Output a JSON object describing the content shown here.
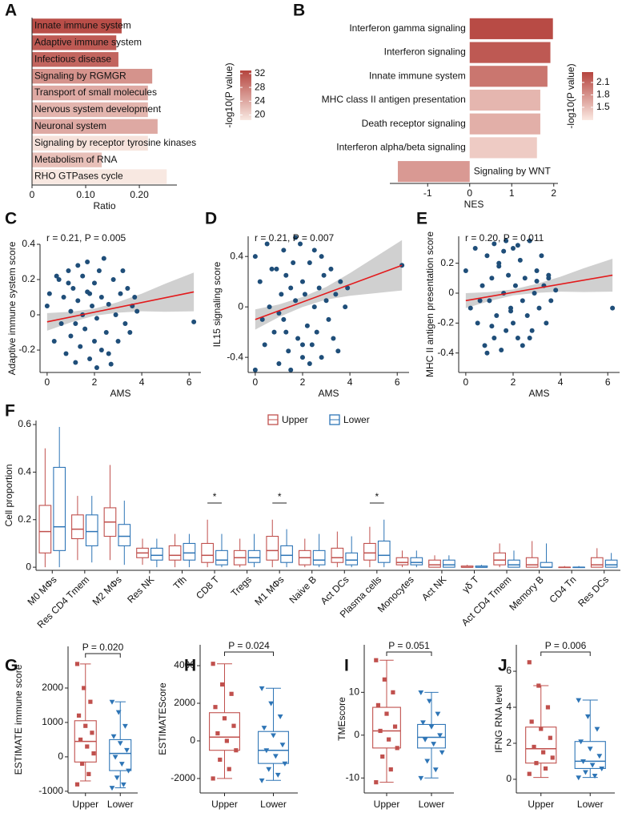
{
  "chart_data": [
    {
      "panel": "A",
      "type": "hbar",
      "label_position": "inside",
      "categories": [
        "Innate immune system",
        "Adaptive immune system",
        "Infectious disease",
        "Signaling by RGMGR",
        "Transport of small molecules",
        "Nervous system development",
        "Neuronal system",
        "Signaling by receptor tyrosine kinases",
        "Metabolism of RNA",
        "RHO GTPases cycle"
      ],
      "values": [
        0.167,
        0.157,
        0.161,
        0.224,
        0.216,
        0.216,
        0.234,
        0.216,
        0.13,
        0.251
      ],
      "color_values": [
        32,
        31,
        30,
        26,
        24,
        23,
        24,
        19,
        22,
        18.5
      ],
      "xlabel": "Ratio",
      "xlim": [
        0,
        0.27
      ],
      "xticks": [
        0,
        {
          "value": 0.1,
          "label": "0.10"
        },
        {
          "value": 0.2,
          "label": "0.20"
        }
      ],
      "colorbar": {
        "title": "-log10(P value)",
        "lim": [
          18.5,
          32.9
        ],
        "ticks": [
          20,
          24,
          28,
          32
        ],
        "colors": [
          "#f8e8e1",
          "#b5443e"
        ]
      }
    },
    {
      "panel": "B",
      "type": "hbar",
      "label_position": "outside",
      "categories": [
        "Interferon gamma signaling",
        "Interferon signaling",
        "Innate immune system",
        "MHC class II antigen presentation",
        "Death receptor signaling",
        "Interferon alpha/beta signaling",
        "Signaling by WNT"
      ],
      "values": [
        1.98,
        1.92,
        1.85,
        1.68,
        1.68,
        1.6,
        -1.71
      ],
      "color_values": [
        2.3,
        2.2,
        2.0,
        1.55,
        1.6,
        1.4,
        1.75
      ],
      "xlabel": "NES",
      "xlim": [
        -1.9,
        2.1
      ],
      "xticks": [
        -1,
        0,
        1,
        2
      ],
      "colorbar": {
        "title": "-log10(P value)",
        "lim": [
          1.19,
          2.35
        ],
        "ticks": [
          1.5,
          1.8,
          2.1
        ],
        "colors": [
          "#fbe9e2",
          "#b5443e"
        ]
      }
    },
    {
      "panel": "C",
      "type": "scatter",
      "annotation": "r = 0.21, P = 0.005",
      "xlabel": "AMS",
      "ylabel": "Adaptive immune system score",
      "color": "#1f4e79",
      "x": [
        0,
        0.1,
        0.3,
        0.5,
        0.6,
        0.7,
        0.8,
        0.9,
        1.0,
        1.0,
        1.1,
        1.2,
        1.3,
        1.3,
        1.4,
        1.5,
        1.5,
        1.6,
        1.7,
        1.8,
        1.8,
        1.9,
        2.0,
        2.0,
        2.1,
        2.2,
        2.3,
        2.3,
        2.4,
        2.5,
        2.6,
        2.7,
        2.8,
        2.9,
        3.0,
        3.1,
        3.2,
        3.3,
        3.4,
        3.5,
        3.6,
        3.7,
        3.8,
        1.2,
        0.9,
        1.7,
        2.6,
        2.1,
        6.2,
        0.4
      ],
      "y": [
        0.05,
        0.12,
        -0.15,
        0.2,
        -0.05,
        0.1,
        -0.22,
        0.25,
        0.02,
        -0.12,
        0.15,
        -0.27,
        0.08,
        0.28,
        -0.18,
        0.0,
        0.22,
        -0.08,
        0.3,
        -0.25,
        0.12,
        0.05,
        -0.15,
        0.18,
        -0.02,
        0.25,
        -0.2,
        0.1,
        0.32,
        -0.1,
        0.06,
        -0.28,
        0.2,
        0.0,
        -0.15,
        0.12,
        0.25,
        -0.05,
        0.15,
        -0.1,
        0.05,
        0.1,
        0.02,
        -0.05,
        0.18,
        0.13,
        -0.22,
        -0.3,
        -0.04,
        0.22
      ],
      "fit": {
        "x": [
          0,
          6.2
        ],
        "y": [
          -0.04,
          0.13
        ],
        "color": "#e31a1c"
      },
      "band": {
        "x": [
          0,
          1,
          2,
          3,
          4,
          5,
          6.2
        ],
        "lower": [
          -0.09,
          -0.043,
          -0.005,
          0.012,
          0.02,
          0.017,
          0.02
        ],
        "upper": [
          0.01,
          0.017,
          0.035,
          0.072,
          0.12,
          0.177,
          0.24
        ],
        "color": "#c8c8c8"
      },
      "xlim": [
        -0.3,
        6.5
      ],
      "xticks": [
        0,
        2,
        4,
        6
      ],
      "ylim": [
        -0.327,
        0.4
      ],
      "yticks": [
        -0.2,
        0,
        0.2,
        0.4
      ]
    },
    {
      "panel": "D",
      "type": "scatter",
      "annotation": "r = 0.21, P = 0.007",
      "xlabel": "AMS",
      "ylabel": "IL15 signaling score",
      "color": "#1f4e79",
      "x": [
        0,
        0,
        0.2,
        0.4,
        0.5,
        0.6,
        0.8,
        0.9,
        1.0,
        1.1,
        1.2,
        1.2,
        1.3,
        1.4,
        1.5,
        1.5,
        1.6,
        1.7,
        1.8,
        1.9,
        2.0,
        2.0,
        2.1,
        2.2,
        2.3,
        2.4,
        2.5,
        2.5,
        2.6,
        2.7,
        2.8,
        2.9,
        3.0,
        3.1,
        3.2,
        3.3,
        3.4,
        3.5,
        3.6,
        3.8,
        1.0,
        1.7,
        2.3,
        0.7,
        2.8,
        1.3,
        6.2,
        3.9,
        0.3,
        2.0
      ],
      "y": [
        0.4,
        -0.5,
        0.2,
        -0.3,
        0.5,
        0.0,
        -0.2,
        0.3,
        -0.45,
        0.1,
        0.45,
        -0.1,
        0.25,
        -0.35,
        0.15,
        -0.5,
        0.35,
        0.05,
        -0.25,
        0.5,
        -0.4,
        0.2,
        0.1,
        -0.15,
        0.35,
        -0.3,
        0.0,
        0.45,
        -0.2,
        0.15,
        -0.4,
        0.25,
        0.05,
        -0.1,
        0.3,
        -0.25,
        0.1,
        -0.35,
        0.2,
        0.0,
        -0.05,
        0.55,
        -0.45,
        0.3,
        0.4,
        -0.2,
        0.33,
        0.15,
        -0.1,
        -0.3
      ],
      "fit": {
        "x": [
          0,
          6.2
        ],
        "y": [
          -0.1,
          0.33
        ],
        "color": "#e31a1c"
      },
      "band": {
        "x": [
          0,
          1,
          2,
          3,
          4,
          5,
          6.2
        ],
        "lower": [
          -0.18,
          -0.081,
          -0.001,
          0.058,
          0.088,
          0.107,
          0.13
        ],
        "upper": [
          -0.02,
          0.019,
          0.079,
          0.158,
          0.268,
          0.387,
          0.53
        ],
        "color": "#c8c8c8"
      },
      "xlim": [
        -0.3,
        6.5
      ],
      "xticks": [
        0,
        2,
        4,
        6
      ],
      "ylim": [
        -0.52,
        0.56
      ],
      "yticks": [
        -0.4,
        0,
        0.4
      ]
    },
    {
      "panel": "E",
      "type": "scatter",
      "annotation": "r = 0.20, P = 0.011",
      "xlabel": "AMS",
      "ylabel": "MHC II antigen presentation score",
      "color": "#1f4e79",
      "x": [
        0,
        0.2,
        0.4,
        0.5,
        0.7,
        0.8,
        0.9,
        1.0,
        1.1,
        1.2,
        1.2,
        1.3,
        1.4,
        1.5,
        1.6,
        1.6,
        1.7,
        1.8,
        1.9,
        2.0,
        2.0,
        2.1,
        2.2,
        2.3,
        2.4,
        2.5,
        2.6,
        2.7,
        2.8,
        2.9,
        3.0,
        3.1,
        3.2,
        3.3,
        3.4,
        3.5,
        3.6,
        3.8,
        0.9,
        1.4,
        2.2,
        2.7,
        1.1,
        1.9,
        3.0,
        6.2,
        3.5,
        0.6,
        2.4,
        1.7
      ],
      "y": [
        0.15,
        -0.1,
        0.3,
        -0.2,
        0.05,
        -0.35,
        0.25,
        -0.05,
        0.1,
        -0.3,
        0.33,
        -0.15,
        0.2,
        -0.38,
        0.0,
        0.28,
        -0.25,
        0.12,
        -0.1,
        0.3,
        -0.2,
        0.05,
        -0.3,
        0.22,
        -0.05,
        0.1,
        -0.15,
        0.35,
        -0.25,
        0.0,
        0.15,
        -0.1,
        0.25,
        0.05,
        -0.2,
        0.1,
        -0.05,
        0.02,
        -0.4,
        0.18,
        0.32,
        -0.3,
        -0.22,
        -0.12,
        0.08,
        -0.1,
        0.12,
        -0.05,
        -0.35,
        0.35
      ],
      "fit": {
        "x": [
          0,
          6.2
        ],
        "y": [
          -0.05,
          0.12
        ],
        "color": "#e31a1c"
      },
      "band": {
        "x": [
          0,
          1,
          2,
          3,
          4,
          5,
          6.2
        ],
        "lower": [
          -0.1,
          -0.053,
          -0.015,
          0.002,
          0.01,
          0.007,
          0.01
        ],
        "upper": [
          0,
          0.007,
          0.025,
          0.062,
          0.11,
          0.167,
          0.23
        ],
        "color": "#c8c8c8"
      },
      "xlim": [
        -0.3,
        6.5
      ],
      "xticks": [
        0,
        2,
        4,
        6
      ],
      "ylim": [
        -0.53,
        0.38
      ],
      "yticks": [
        -0.4,
        -0.2,
        0,
        0.2
      ]
    },
    {
      "panel": "F",
      "type": "box",
      "ylabel": "Cell proportion",
      "categories": [
        "M0 MΦs",
        "Res CD4 Tmem",
        "M2 MΦs",
        "Res NK",
        "Tfh",
        "CD8 T",
        "Tregs",
        "M1 MΦs",
        "Naive B",
        "Act DCs",
        "Plasma cells",
        "Monocytes",
        "Act NK",
        "γδ T",
        "Act CD4 Tmem",
        "Memory B",
        "CD4 Tn",
        "Res DCs"
      ],
      "series": [
        {
          "name": "Upper",
          "color": "#c0504d",
          "values": [
            [
              0,
              0.06,
              0.15,
              0.26,
              0.5
            ],
            [
              0.03,
              0.12,
              0.16,
              0.22,
              0.3
            ],
            [
              0.03,
              0.13,
              0.19,
              0.25,
              0.43
            ],
            [
              0.01,
              0.04,
              0.06,
              0.08,
              0.12
            ],
            [
              0,
              0.03,
              0.05,
              0.09,
              0.14
            ],
            [
              0,
              0.02,
              0.05,
              0.1,
              0.2
            ],
            [
              0,
              0.01,
              0.04,
              0.07,
              0.12
            ],
            [
              0,
              0.03,
              0.07,
              0.13,
              0.2
            ],
            [
              0,
              0.01,
              0.04,
              0.07,
              0.12
            ],
            [
              0,
              0.02,
              0.04,
              0.08,
              0.15
            ],
            [
              0,
              0.03,
              0.06,
              0.1,
              0.17
            ],
            [
              0,
              0.01,
              0.02,
              0.04,
              0.07
            ],
            [
              0,
              0,
              0.01,
              0.03,
              0.05
            ],
            [
              0,
              0,
              0,
              0.005,
              0.01
            ],
            [
              0,
              0.01,
              0.03,
              0.06,
              0.1
            ],
            [
              0,
              0,
              0.01,
              0.04,
              0.11
            ],
            [
              0,
              0,
              0,
              0,
              0.005
            ],
            [
              0,
              0,
              0.01,
              0.04,
              0.08
            ]
          ]
        },
        {
          "name": "Lower",
          "color": "#2e75b6",
          "values": [
            [
              0,
              0.07,
              0.17,
              0.42,
              0.59
            ],
            [
              0.02,
              0.09,
              0.15,
              0.22,
              0.3
            ],
            [
              0.01,
              0.09,
              0.13,
              0.18,
              0.28
            ],
            [
              0,
              0.03,
              0.05,
              0.08,
              0.12
            ],
            [
              0,
              0.03,
              0.06,
              0.1,
              0.14
            ],
            [
              0,
              0.01,
              0.03,
              0.07,
              0.14
            ],
            [
              0,
              0.02,
              0.04,
              0.07,
              0.14
            ],
            [
              0,
              0.02,
              0.05,
              0.09,
              0.16
            ],
            [
              0,
              0.01,
              0.03,
              0.07,
              0.14
            ],
            [
              0,
              0.01,
              0.03,
              0.06,
              0.13
            ],
            [
              0,
              0.02,
              0.05,
              0.11,
              0.2
            ],
            [
              0,
              0.01,
              0.02,
              0.04,
              0.07
            ],
            [
              0,
              0,
              0.01,
              0.03,
              0.05
            ],
            [
              0,
              0,
              0,
              0.005,
              0.01
            ],
            [
              0,
              0,
              0.01,
              0.03,
              0.07
            ],
            [
              0,
              0,
              0,
              0.02,
              0.1
            ],
            [
              0,
              0,
              0,
              0,
              0.005
            ],
            [
              0,
              0,
              0.01,
              0.03,
              0.06
            ]
          ]
        }
      ],
      "annotations": [
        {
          "text": "*",
          "category": "CD8 T",
          "y": 0.27
        },
        {
          "text": "*",
          "category": "M1 MΦs",
          "y": 0.27
        },
        {
          "text": "*",
          "category": "Plasma cells",
          "y": 0.27
        }
      ],
      "ylim": [
        -0.013,
        0.617
      ],
      "yticks": [
        0,
        0.2,
        0.4,
        0.6
      ]
    },
    {
      "panel": "G",
      "type": "box",
      "annotation": "P = 0.020",
      "ylabel": "ESTIMATE immune score",
      "categories": [
        "Upper",
        "Lower"
      ],
      "colors": [
        "#c0504d",
        "#2e75b6"
      ],
      "values": [
        [
          -700,
          -150,
          450,
          1050,
          2700
        ],
        [
          -900,
          -400,
          100,
          500,
          1600
        ]
      ],
      "points": [
        [
          2700,
          2000,
          1600,
          1200,
          900,
          700,
          500,
          300,
          100,
          -200,
          -500,
          -800
        ],
        [
          1600,
          1300,
          900,
          600,
          400,
          200,
          0,
          -200,
          -400,
          -600,
          -800,
          -900
        ]
      ],
      "ylim": [
        -1050,
        3210
      ],
      "yticks": [
        -1000,
        0,
        1000,
        2000
      ]
    },
    {
      "panel": "H",
      "type": "box",
      "annotation": "P = 0.024",
      "ylabel": "ESTIMATEScore",
      "categories": [
        "Upper",
        "Lower"
      ],
      "colors": [
        "#c0504d",
        "#2e75b6"
      ],
      "values": [
        [
          -2000,
          -500,
          200,
          1500,
          4100
        ],
        [
          -2100,
          -1200,
          -500,
          500,
          2800
        ]
      ],
      "points": [
        [
          4100,
          3000,
          2500,
          1800,
          1200,
          800,
          400,
          0,
          -500,
          -1000,
          -1500,
          -2000
        ],
        [
          2800,
          2000,
          1300,
          700,
          300,
          -200,
          -500,
          -800,
          -1200,
          -1500,
          -1800,
          -2100
        ]
      ],
      "ylim": [
        -2770,
        5110
      ],
      "yticks": [
        -2000,
        0,
        2000,
        4000
      ]
    },
    {
      "panel": "I",
      "type": "box",
      "annotation": "P = 0.051",
      "ylabel": "TMEscore",
      "categories": [
        "Upper",
        "Lower"
      ],
      "colors": [
        "#c0504d",
        "#2e75b6"
      ],
      "values": [
        [
          -11,
          -3,
          1,
          6.5,
          17.5
        ],
        [
          -10,
          -3,
          -0.5,
          2.5,
          10
        ]
      ],
      "points": [
        [
          17.5,
          13,
          10,
          7,
          5,
          2,
          1,
          -1,
          -3,
          -5,
          -8,
          -11
        ],
        [
          10,
          8,
          5,
          3,
          2,
          0,
          -1,
          -2,
          -4,
          -6,
          -8,
          -10
        ]
      ],
      "ylim": [
        -13.5,
        21.1
      ],
      "yticks": [
        -10,
        0,
        10
      ]
    },
    {
      "panel": "J",
      "type": "box",
      "annotation": "P = 0.006",
      "ylabel": "IFNG RNA level",
      "categories": [
        "Upper",
        "Lower"
      ],
      "colors": [
        "#c0504d",
        "#2e75b6"
      ],
      "values": [
        [
          0.1,
          0.9,
          1.7,
          2.9,
          5.2
        ],
        [
          0.1,
          0.6,
          1.0,
          2.1,
          4.4
        ]
      ],
      "points": [
        [
          6.5,
          5.2,
          4,
          3.2,
          2.8,
          2.3,
          1.8,
          1.5,
          1.2,
          0.9,
          0.6,
          0.3
        ],
        [
          4.4,
          3.5,
          2.8,
          2.1,
          1.7,
          1.3,
          1.0,
          0.8,
          0.6,
          0.4,
          0.2,
          0.1
        ]
      ],
      "ylim": [
        -0.76,
        7.47
      ],
      "yticks": [
        0,
        2,
        4,
        6
      ]
    }
  ]
}
